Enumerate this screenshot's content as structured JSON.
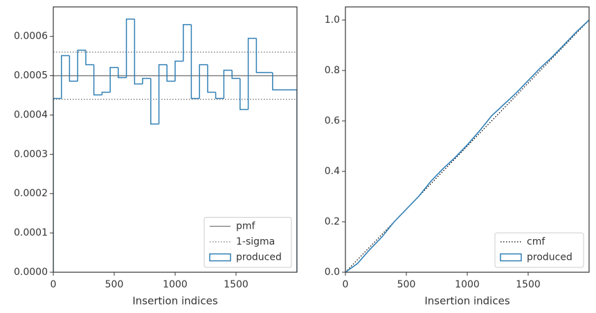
{
  "chart_data": [
    {
      "type": "histogram",
      "xlabel": "Insertion indices",
      "bins": [
        0,
        67,
        133,
        200,
        267,
        333,
        400,
        467,
        533,
        600,
        667,
        733,
        800,
        867,
        933,
        1000,
        1067,
        1133,
        1200,
        1267,
        1333,
        1400,
        1467,
        1533,
        1600,
        1667,
        1733,
        1800,
        1867,
        1933,
        2000
      ],
      "series": [
        {
          "name": "produced",
          "color": "#2f7fb5",
          "values": [
            0.000442,
            0.000551,
            0.000486,
            0.000565,
            0.000528,
            0.000451,
            0.000458,
            0.000521,
            0.000495,
            0.000644,
            0.000479,
            0.000493,
            0.000377,
            0.000528,
            0.000486,
            0.000537,
            0.00063,
            0.000442,
            0.000528,
            0.000458,
            0.000442,
            0.000514,
            0.000493,
            0.000414,
            0.000595,
            0.000508,
            0.000508,
            0.000464,
            0.000464,
            0.000464
          ]
        }
      ],
      "hlines": [
        {
          "name": "pmf",
          "color": "#777777",
          "style": "solid",
          "values": [
            0.0005
          ]
        },
        {
          "name": "1-sigma",
          "color": "#777777",
          "style": "dotted",
          "values": [
            0.00044,
            0.00056
          ]
        }
      ],
      "xlim": [
        0,
        2000
      ],
      "xticks": [
        0,
        500,
        1000,
        1500
      ],
      "ylim": [
        0,
        0.000675
      ],
      "yticks": [
        {
          "value": 0,
          "label": "0.0000"
        },
        {
          "value": 0.0001,
          "label": "0.0001"
        },
        {
          "value": 0.0002,
          "label": "0.0002"
        },
        {
          "value": 0.0003,
          "label": "0.0003"
        },
        {
          "value": 0.0004,
          "label": "0.0004"
        },
        {
          "value": 0.0005,
          "label": "0.0005"
        },
        {
          "value": 0.0006,
          "label": "0.0006"
        }
      ],
      "legend": [
        "pmf",
        "1-sigma",
        "produced"
      ],
      "legend_loc": "lower right"
    },
    {
      "type": "line",
      "xlabel": "Insertion indices",
      "series": [
        {
          "name": "cmf",
          "color": "#000000",
          "style": "dotted",
          "x": [
            0,
            2000
          ],
          "values": [
            0,
            1
          ]
        },
        {
          "name": "produced",
          "color": "#2f7fb5",
          "style": "solid",
          "x": [
            0,
            100,
            200,
            300,
            400,
            500,
            600,
            700,
            800,
            900,
            1000,
            1100,
            1200,
            1300,
            1400,
            1500,
            1600,
            1700,
            1800,
            1900,
            2000
          ],
          "values": [
            0,
            0.035,
            0.09,
            0.14,
            0.2,
            0.25,
            0.3,
            0.36,
            0.41,
            0.455,
            0.505,
            0.56,
            0.62,
            0.665,
            0.71,
            0.76,
            0.81,
            0.855,
            0.905,
            0.955,
            1
          ]
        }
      ],
      "xlim": [
        0,
        2000
      ],
      "xticks": [
        0,
        500,
        1000,
        1500
      ],
      "ylim": [
        0,
        1.052
      ],
      "yticks": [
        {
          "value": 0,
          "label": "0.0"
        },
        0.2,
        0.4,
        0.6,
        0.8,
        {
          "value": 1,
          "label": "1.0"
        }
      ],
      "legend": [
        "cmf",
        "produced"
      ],
      "legend_loc": "lower right"
    }
  ]
}
